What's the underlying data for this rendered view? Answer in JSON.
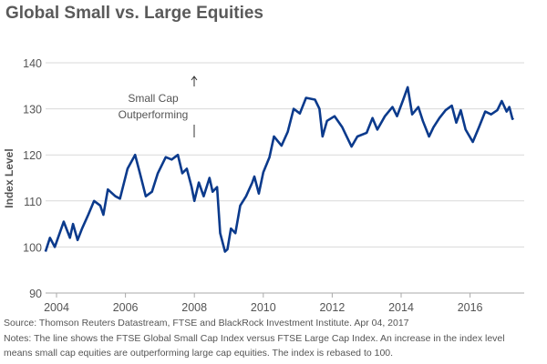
{
  "chart_data": {
    "type": "line",
    "title": "Global Small vs. Large Equities",
    "xlabel": "",
    "ylabel": "Index Level",
    "xlim": [
      2003.7,
      2017.3
    ],
    "ylim": [
      90,
      140
    ],
    "xticks": [
      2004,
      2006,
      2008,
      2010,
      2012,
      2014,
      2016
    ],
    "xtick_labels": [
      "2004",
      "2006",
      "2008",
      "2010",
      "2012",
      "2014",
      "2016"
    ],
    "yticks": [
      90,
      100,
      110,
      120,
      130,
      140
    ],
    "ytick_labels": [
      "90",
      "100",
      "110",
      "120",
      "130",
      "140"
    ],
    "grid": "horizontal",
    "line_color": "#0b3a8c",
    "annotation": {
      "line1": "Small Cap",
      "line2": "Outperforming",
      "x": 2008
    },
    "x": [
      2003.68,
      2003.81,
      2003.95,
      2004.21,
      2004.39,
      2004.48,
      2004.61,
      2004.74,
      2004.92,
      2005.09,
      2005.27,
      2005.36,
      2005.49,
      2005.71,
      2005.84,
      2006.06,
      2006.28,
      2006.42,
      2006.59,
      2006.77,
      2006.94,
      2007.17,
      2007.34,
      2007.52,
      2007.65,
      2007.78,
      2007.92,
      2008.0,
      2008.13,
      2008.27,
      2008.44,
      2008.53,
      2008.66,
      2008.75,
      2008.89,
      2008.96,
      2009.06,
      2009.19,
      2009.33,
      2009.5,
      2009.68,
      2009.74,
      2009.87,
      2010.0,
      2010.18,
      2010.31,
      2010.53,
      2010.71,
      2010.88,
      2011.06,
      2011.24,
      2011.5,
      2011.63,
      2011.72,
      2011.85,
      2012.07,
      2012.29,
      2012.56,
      2012.73,
      2013.0,
      2013.17,
      2013.31,
      2013.53,
      2013.75,
      2013.88,
      2014.06,
      2014.19,
      2014.32,
      2014.5,
      2014.63,
      2014.81,
      2014.94,
      2015.11,
      2015.29,
      2015.47,
      2015.6,
      2015.73,
      2015.87,
      2016.08,
      2016.26,
      2016.44,
      2016.61,
      2016.79,
      2016.92,
      2017.06,
      2017.14,
      2017.23,
      2017.26
    ],
    "y": [
      99,
      102,
      100,
      105.5,
      102,
      105,
      101.5,
      104,
      107,
      110,
      109,
      107,
      112.5,
      111,
      110.5,
      117,
      120,
      116,
      111,
      112,
      116,
      119.5,
      119,
      120,
      116,
      117,
      113,
      110,
      114,
      111,
      115,
      112,
      113,
      103,
      99,
      99.5,
      104,
      103,
      109,
      111,
      114,
      115.3,
      111.6,
      116.2,
      119.5,
      124,
      122,
      125,
      130,
      129,
      132.4,
      132,
      130,
      124,
      127.4,
      128.4,
      126,
      121.8,
      124,
      124.8,
      128,
      125.5,
      128.4,
      130.4,
      128.4,
      132,
      134.7,
      128.8,
      130.4,
      127.4,
      124,
      126,
      128,
      129.7,
      130.7,
      127,
      129.7,
      125.5,
      122.8,
      126,
      129.4,
      128.8,
      129.7,
      131.7,
      129.4,
      130.4,
      127.8,
      128
    ]
  },
  "footer": {
    "source": "Source: Thomson Reuters Datastream, FTSE and BlackRock Investment Institute. Apr 04, 2017",
    "notes_line1": "Notes: The line shows the FTSE Global Small Cap Index versus FTSE  Large Cap Index. An increase in the index level",
    "notes_line2": "means small cap equities are outperforming large cap equities. The index is rebased to 100."
  }
}
